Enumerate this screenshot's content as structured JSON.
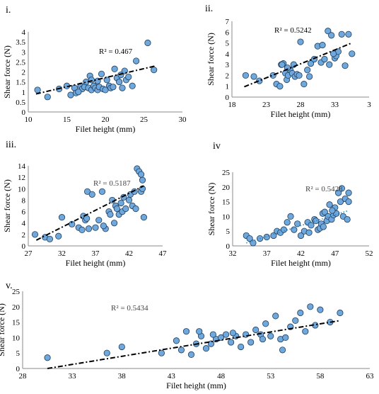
{
  "chart_data": [
    {
      "type": "scatter",
      "panel_label": "i.",
      "xlabel": "Filet height (mm)",
      "ylabel": "Shear force (N)",
      "xlim": [
        10,
        30
      ],
      "ylim": [
        0,
        4
      ],
      "xticks": [
        "10",
        "15",
        "20",
        "25",
        "30"
      ],
      "yticks": [
        "0",
        "0.5",
        "1",
        "1.5",
        "2",
        "2.5",
        "3",
        "3.5",
        "4"
      ],
      "r2_label": "R² = 0.467",
      "trendline": {
        "style": "dash-dot",
        "color": "#000000",
        "x": [
          11,
          26.5
        ],
        "y": [
          0.9,
          2.3
        ]
      },
      "marker_color": "#6fa8dc",
      "points": {
        "x": [
          11.2,
          12.5,
          14.0,
          15.0,
          15.5,
          16.0,
          16.2,
          16.8,
          17.0,
          17.3,
          17.5,
          17.8,
          18.0,
          18.2,
          18.5,
          18.7,
          19.0,
          19.0,
          19.2,
          19.5,
          19.7,
          20.0,
          20.2,
          20.5,
          20.7,
          21.0,
          21.2,
          21.5,
          21.8,
          22.0,
          22.2,
          22.5,
          22.7,
          23.0,
          23.5,
          24.0,
          25.5,
          26.3,
          16.5,
          18.2
        ],
        "y": [
          1.1,
          0.75,
          1.15,
          1.3,
          0.85,
          1.2,
          0.95,
          1.3,
          1.15,
          1.25,
          1.5,
          1.2,
          1.8,
          1.1,
          1.3,
          1.2,
          1.1,
          1.55,
          1.25,
          1.9,
          1.15,
          1.1,
          1.6,
          1.3,
          1.2,
          1.25,
          2.15,
          1.7,
          1.5,
          1.85,
          1.2,
          2.05,
          1.6,
          1.75,
          1.3,
          2.55,
          3.45,
          2.1,
          1.0,
          1.6
        ]
      }
    },
    {
      "type": "scatter",
      "panel_label": "ii.",
      "xlabel": "Filet height (mm)",
      "ylabel": "Shear force (N)",
      "xlim": [
        18,
        38
      ],
      "ylim": [
        0,
        7
      ],
      "xticks": [
        "18",
        "23",
        "28",
        "33",
        "3"
      ],
      "yticks": [
        "0",
        "1",
        "2",
        "3",
        "4",
        "5",
        "6",
        "7"
      ],
      "r2_label": "R² = 0.5242",
      "trendline": {
        "style": "dash-dot",
        "color": "#000000",
        "x": [
          19.8,
          35.5
        ],
        "y": [
          0.95,
          5.0
        ]
      },
      "marker_color": "#6fa8dc",
      "points": {
        "x": [
          20.0,
          21.2,
          22.0,
          24.0,
          24.5,
          25.0,
          25.2,
          25.5,
          25.8,
          26.0,
          26.2,
          26.5,
          26.8,
          27.0,
          27.2,
          27.5,
          27.8,
          28.0,
          28.5,
          29.0,
          29.3,
          29.5,
          30.0,
          30.5,
          31.0,
          31.2,
          31.5,
          32.0,
          32.2,
          32.5,
          33.0,
          33.2,
          33.5,
          34.0,
          34.5,
          35.0,
          35.5,
          25.3,
          26.1,
          32.8
        ],
        "y": [
          2.0,
          1.9,
          1.5,
          2.0,
          1.2,
          1.0,
          3.0,
          3.1,
          2.2,
          1.6,
          2.0,
          2.5,
          2.2,
          3.0,
          1.9,
          2.1,
          2.0,
          5.1,
          1.2,
          2.5,
          1.9,
          3.1,
          3.5,
          4.7,
          3.2,
          4.8,
          3.5,
          6.1,
          3.0,
          5.7,
          3.6,
          3.8,
          4.2,
          5.8,
          2.9,
          5.8,
          4.0,
          3.0,
          2.7,
          4.0
        ]
      }
    },
    {
      "type": "scatter",
      "panel_label": "iii.",
      "xlabel": "Filet height (mm)",
      "ylabel": "Shear force (N)",
      "xlim": [
        27,
        47
      ],
      "ylim": [
        0,
        14
      ],
      "xticks": [
        "27",
        "32",
        "37",
        "42",
        "47"
      ],
      "yticks": [
        "0",
        "2",
        "4",
        "6",
        "8",
        "10",
        "12",
        "14"
      ],
      "r2_label": "R² = 0.5187",
      "trendline": {
        "style": "dash-dot",
        "color": "#000000",
        "x": [
          28.2,
          44.2
        ],
        "y": [
          1.0,
          10.5
        ]
      },
      "marker_color": "#6fa8dc",
      "points": {
        "x": [
          28.0,
          29.5,
          30.2,
          31.5,
          32.0,
          33.5,
          34.5,
          35.0,
          35.2,
          35.5,
          35.8,
          36.0,
          36.5,
          37.0,
          37.5,
          38.0,
          38.5,
          39.0,
          39.2,
          39.5,
          39.8,
          40.0,
          40.2,
          40.5,
          40.8,
          41.0,
          41.2,
          41.5,
          42.0,
          42.2,
          42.5,
          42.8,
          43.0,
          43.2,
          43.5,
          43.8,
          44.0,
          44.2,
          44.0,
          43.8,
          38.2,
          35.7
        ],
        "y": [
          2.0,
          1.5,
          1.2,
          1.7,
          5.0,
          3.8,
          3.2,
          2.8,
          5.2,
          4.5,
          9.5,
          3.0,
          9.0,
          3.2,
          4.5,
          9.5,
          3.0,
          6.0,
          5.5,
          8.0,
          4.0,
          7.0,
          6.5,
          5.5,
          7.5,
          6.0,
          8.5,
          6.5,
          8.0,
          9.0,
          7.0,
          9.5,
          6.5,
          13.5,
          13.0,
          9.5,
          11.5,
          5.0,
          10.0,
          12.5,
          3.5,
          4.8
        ]
      }
    },
    {
      "type": "scatter",
      "panel_label": "iv",
      "xlabel": "Filet height (mm)",
      "ylabel": "Shear force (N)",
      "xlim": [
        32,
        52
      ],
      "ylim": [
        0,
        25
      ],
      "xticks": [
        "32",
        "37",
        "42",
        "47",
        "52"
      ],
      "yticks": [
        "0",
        "5",
        "10",
        "15",
        "20",
        "25"
      ],
      "r2_label": "R² = 0.5428",
      "trendline": {
        "style": "dotted",
        "color": "#2e86c1",
        "x": [
          34,
          49
        ],
        "y": [
          1.0,
          12.0
        ]
      },
      "marker_color": "#6fa8dc",
      "points": {
        "x": [
          34.0,
          34.5,
          35.0,
          36.0,
          37.0,
          38.0,
          38.5,
          39.0,
          39.5,
          40.0,
          40.5,
          41.0,
          41.5,
          42.0,
          42.5,
          43.0,
          43.5,
          44.0,
          44.5,
          44.8,
          45.0,
          45.2,
          45.5,
          45.8,
          46.0,
          46.2,
          46.5,
          46.8,
          47.0,
          47.2,
          47.5,
          47.8,
          48.0,
          48.2,
          48.5,
          48.8,
          49.0,
          49.0,
          45.3,
          46.6,
          44.2,
          43.2
        ],
        "y": [
          3.5,
          2.5,
          1.0,
          2.5,
          3.0,
          3.5,
          5.0,
          4.5,
          5.5,
          8.0,
          10.0,
          5.5,
          7.5,
          3.5,
          5.0,
          8.0,
          7.0,
          9.0,
          5.5,
          6.0,
          7.5,
          11.0,
          11.5,
          8.5,
          10.0,
          14.0,
          9.0,
          10.5,
          13.0,
          11.0,
          18.0,
          15.0,
          19.5,
          10.0,
          16.0,
          9.0,
          18.0,
          15.0,
          6.5,
          12.0,
          8.5,
          4.5
        ]
      }
    },
    {
      "type": "scatter",
      "panel_label": "v.",
      "xlabel": "Filet height (mm)",
      "ylabel": "Shear force (N)",
      "xlim": [
        28,
        63
      ],
      "ylim": [
        0,
        25
      ],
      "xticks": [
        "28",
        "33",
        "38",
        "43",
        "48",
        "53",
        "58",
        "63"
      ],
      "yticks": [
        "0",
        "5",
        "10",
        "15",
        "20",
        "25"
      ],
      "r2_label": "R² = 0.5434",
      "trendline": {
        "style": "dash-dot",
        "color": "#000000",
        "x": [
          30.5,
          60
        ],
        "y": [
          0.0,
          15.5
        ]
      },
      "marker_color": "#6fa8dc",
      "points": {
        "x": [
          30.5,
          36.5,
          38.0,
          42.0,
          43.5,
          44.0,
          44.5,
          45.0,
          45.5,
          46.0,
          46.5,
          47.0,
          47.5,
          48.0,
          48.5,
          49.0,
          49.5,
          50.0,
          50.5,
          51.0,
          51.5,
          52.0,
          52.5,
          53.0,
          53.5,
          54.0,
          54.5,
          55.0,
          55.5,
          56.0,
          56.5,
          57.0,
          57.5,
          58.0,
          59.0,
          60.0,
          49.2,
          52.2,
          47.2,
          45.8,
          54.2
        ],
        "y": [
          3.5,
          5.0,
          7.0,
          5.0,
          9.0,
          6.0,
          12.0,
          4.5,
          8.0,
          10.5,
          6.5,
          8.0,
          9.5,
          10.0,
          11.0,
          8.5,
          10.5,
          7.0,
          11.0,
          8.5,
          12.5,
          11.0,
          14.5,
          10.5,
          17.0,
          9.5,
          10.0,
          13.5,
          15.5,
          18.0,
          12.0,
          20.0,
          14.0,
          19.0,
          15.0,
          18.0,
          11.5,
          9.5,
          11.0,
          12.0,
          6.0
        ]
      }
    }
  ]
}
